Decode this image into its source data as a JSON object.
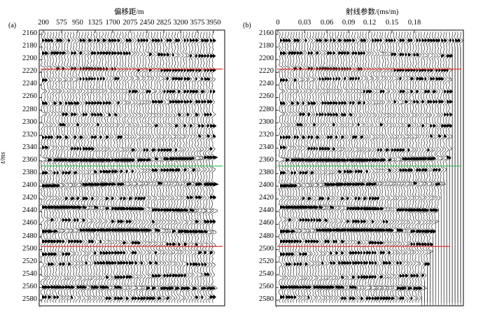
{
  "panels": [
    {
      "id": "a",
      "label": "(a)",
      "x_title": "偏移距/m",
      "y_title": "t/ms",
      "x_ticks": [
        200,
        575,
        950,
        1325,
        1700,
        2075,
        2450,
        2825,
        3200,
        3575,
        3950
      ],
      "y_ticks": [
        2160,
        2180,
        2200,
        2220,
        2240,
        2260,
        2280,
        2300,
        2320,
        2340,
        2360,
        2380,
        2400,
        2420,
        2440,
        2460,
        2480,
        2500,
        2520,
        2540,
        2560,
        2580
      ],
      "y_range": [
        2160,
        2580
      ],
      "horizons": [
        {
          "name": "upper-red-line",
          "t": 2215,
          "color": "#e0322b"
        },
        {
          "name": "green-line",
          "t": 2368,
          "color": "#2db84a"
        },
        {
          "name": "lower-red-line",
          "t": 2495,
          "color": "#e0322b"
        }
      ]
    },
    {
      "id": "b",
      "label": "(b)",
      "x_title": "射线参数/(ms/m)",
      "y_title": "",
      "x_ticks": [
        0,
        0.03,
        0.06,
        0.09,
        0.12,
        0.15,
        0.18
      ],
      "y_ticks": [
        2160,
        2180,
        2200,
        2220,
        2240,
        2260,
        2280,
        2300,
        2320,
        2340,
        2360,
        2380,
        2400,
        2420,
        2440,
        2460,
        2480,
        2500,
        2520,
        2540,
        2560,
        2580
      ],
      "y_range": [
        2160,
        2580
      ],
      "horizons": [
        {
          "name": "upper-red-line",
          "t": 2215,
          "color": "#e0322b"
        },
        {
          "name": "green-line",
          "t": 2368,
          "color": "#2db84a"
        },
        {
          "name": "lower-red-line",
          "t": 2495,
          "color": "#e0322b"
        }
      ]
    }
  ],
  "reflectors": [
    2170,
    2192,
    2215,
    2232,
    2250,
    2268,
    2286,
    2304,
    2322,
    2340,
    2356,
    2376,
    2398,
    2418,
    2436,
    2454,
    2472,
    2490,
    2506,
    2524,
    2542,
    2560,
    2575
  ]
}
